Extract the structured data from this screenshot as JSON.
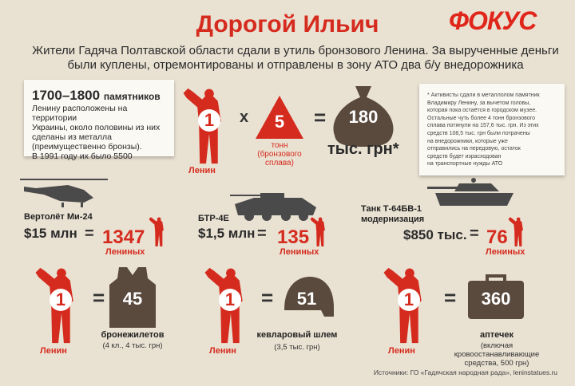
{
  "header": {
    "title": "Дорогой Ильич",
    "logo": "ФОКУС",
    "subtitle_line1": "Жители Гадяча Полтавской области сдали в утиль бронзового Ленина. За вырученные деньги",
    "subtitle_line2": "были куплены, отремонтированы и отправлены в зону АТО два б/у внедорожника"
  },
  "monuments": {
    "count": "1700–1800",
    "unit": "памятников",
    "lines": [
      "Ленину расположены на территории",
      "Украины, около половины из них",
      "сделаны из металла",
      "(преимущественно бронзы).",
      "В 1991 году их было 5500"
    ]
  },
  "equation": {
    "lenin_count": "1",
    "lenin_label": "Ленин",
    "times": "x",
    "tons": "5",
    "tons_label": "тонн",
    "tons_sub": "(бронзового",
    "tons_sub2": "сплава)",
    "equals": "=",
    "money": "180",
    "money_unit": "тыс. грн*"
  },
  "note": {
    "lines": [
      "* Активисты сдали в металлолом памятник",
      "Владимиру Ленину, за вычетом головы,",
      "которая пока остаётся в городском музее.",
      "Остальные чуть более 4 тонн бронзового",
      "сплава потянули на 157,6 тыс. грн. Из этих",
      "средств 108,5 тыс. грн были потрачены",
      "на внедорожники, которые уже",
      "отправились на передовую, остаток",
      "средств будет израсходован",
      "на транспортные нужды АТО"
    ]
  },
  "vehicles": [
    {
      "name": "Вертолёт Ми-24",
      "price": "$15 млн",
      "equals": "=",
      "value": "1347",
      "unit": "Лениных"
    },
    {
      "name": "БТР-4Е",
      "price": "$1,5 млн",
      "equals": "=",
      "value": "135",
      "unit": "Лениных"
    },
    {
      "name_line1": "Танк Т-64БВ-1",
      "name_line2": "модернизация",
      "price": "$850 тыс.",
      "equals": "=",
      "value": "76",
      "unit": "Лениных"
    }
  ],
  "equipment": [
    {
      "lenin": "1",
      "lenin_label": "Ленин",
      "equals": "=",
      "value": "45",
      "label": "бронежилетов",
      "sub": "(4 кл., 4 тыс. грн)"
    },
    {
      "lenin": "1",
      "lenin_label": "Ленин",
      "equals": "=",
      "value": "51",
      "label": "кевларовый шлем",
      "sub": "(3,5 тыс. грн)"
    },
    {
      "lenin": "1",
      "lenin_label": "Ленин",
      "equals": "=",
      "value": "360",
      "label": "аптечек",
      "sub": "(включая",
      "sub2": "кровоостанавливающие",
      "sub3": "средства, 500 грн)"
    }
  ],
  "source": "Источники: ГО «Гадячская народная рада», leninstatues.ru",
  "colors": {
    "accent": "#d52b1e",
    "background": "#e9e1d2",
    "object": "#5a4a3e"
  }
}
